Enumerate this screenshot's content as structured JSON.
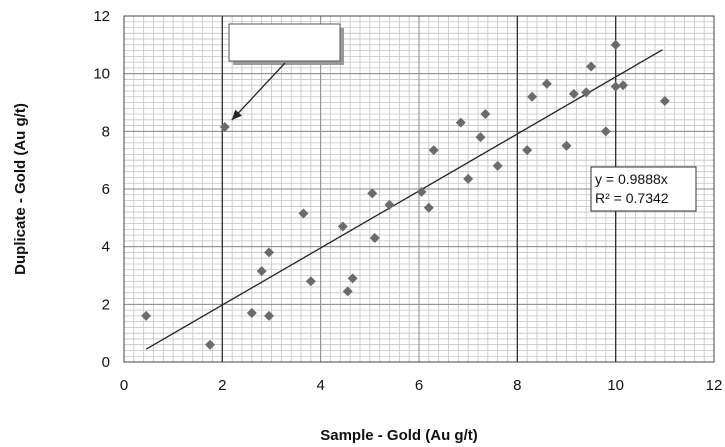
{
  "chart_data": {
    "type": "scatter",
    "title": "",
    "xlabel": "Sample - Gold (Au g/t)",
    "ylabel": "Duplicate - Gold (Au g/t)",
    "xlim": [
      0,
      12
    ],
    "ylim": [
      0,
      12
    ],
    "x_ticks": [
      0,
      2,
      4,
      6,
      8,
      10,
      12
    ],
    "y_ticks": [
      0,
      2,
      4,
      6,
      8,
      10,
      12
    ],
    "minor_grid_step": 0.2,
    "grid": true,
    "marker": "diamond",
    "marker_color": "#6b6b6b",
    "points": [
      {
        "x": 0.45,
        "y": 1.6
      },
      {
        "x": 1.75,
        "y": 0.6
      },
      {
        "x": 2.05,
        "y": 8.15
      },
      {
        "x": 2.6,
        "y": 1.7
      },
      {
        "x": 2.8,
        "y": 3.15
      },
      {
        "x": 2.95,
        "y": 3.8
      },
      {
        "x": 2.95,
        "y": 1.6
      },
      {
        "x": 3.65,
        "y": 5.15
      },
      {
        "x": 3.8,
        "y": 2.8
      },
      {
        "x": 4.45,
        "y": 4.7
      },
      {
        "x": 4.55,
        "y": 2.45
      },
      {
        "x": 4.65,
        "y": 2.9
      },
      {
        "x": 5.05,
        "y": 5.85
      },
      {
        "x": 5.1,
        "y": 4.3
      },
      {
        "x": 5.4,
        "y": 5.45
      },
      {
        "x": 6.05,
        "y": 5.9
      },
      {
        "x": 6.2,
        "y": 5.35
      },
      {
        "x": 6.3,
        "y": 7.35
      },
      {
        "x": 6.85,
        "y": 8.3
      },
      {
        "x": 7.0,
        "y": 6.35
      },
      {
        "x": 7.25,
        "y": 7.8
      },
      {
        "x": 7.35,
        "y": 8.6
      },
      {
        "x": 7.6,
        "y": 6.8
      },
      {
        "x": 8.2,
        "y": 7.35
      },
      {
        "x": 8.3,
        "y": 9.2
      },
      {
        "x": 8.6,
        "y": 9.65
      },
      {
        "x": 9.0,
        "y": 7.5
      },
      {
        "x": 9.15,
        "y": 9.3
      },
      {
        "x": 9.4,
        "y": 9.35
      },
      {
        "x": 9.5,
        "y": 10.25
      },
      {
        "x": 9.8,
        "y": 8.0
      },
      {
        "x": 10.0,
        "y": 11.0
      },
      {
        "x": 10.0,
        "y": 9.55
      },
      {
        "x": 10.15,
        "y": 9.6
      },
      {
        "x": 11.0,
        "y": 9.05
      }
    ],
    "trendline": {
      "slope": 0.9888,
      "x_range": [
        0.45,
        10.95
      ],
      "equation": "y = 0.9888x",
      "r_squared": "R² = 0.7342"
    },
    "emphasized_gridlines_x": [
      2,
      8,
      10
    ],
    "callout": {
      "text": "",
      "points_to": {
        "x": 2.05,
        "y": 8.15
      }
    }
  }
}
